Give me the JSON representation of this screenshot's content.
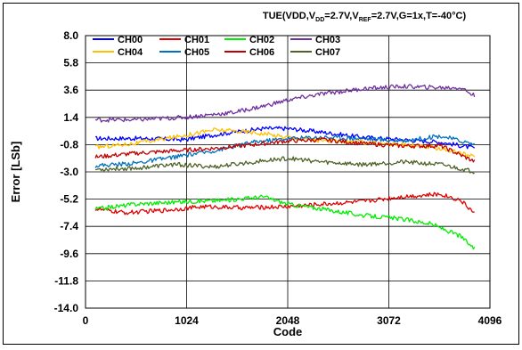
{
  "chart_data": {
    "type": "line",
    "title": {
      "prefix": "TUE(VDD,V",
      "sub1": "DD",
      "mid1": "=2.7V,V",
      "sub2": "REF",
      "suffix": "=2.7V,G=1x,T=-40°C)"
    },
    "xlabel": "Code",
    "ylabel": "Error [LSb]",
    "xlim": [
      0,
      4096
    ],
    "ylim": [
      -14.0,
      8.0
    ],
    "x_ticks": [
      0,
      1024,
      2048,
      3072,
      4096
    ],
    "x_tick_labels": [
      "0",
      "1024",
      "2048",
      "3072",
      "4096"
    ],
    "y_ticks": [
      8.0,
      5.8,
      3.6,
      1.4,
      -0.8,
      -3.0,
      -5.2,
      -7.4,
      -9.6,
      -11.8,
      -14.0
    ],
    "y_tick_labels": [
      "8.0",
      "5.8",
      "3.6",
      "1.4",
      "-0.8",
      "-3.0",
      "-5.2",
      "-7.4",
      "-9.6",
      "-11.8",
      "-14.0"
    ],
    "grid": true,
    "legend_position": "top-left, inside plot",
    "series": [
      {
        "name": "CH00",
        "color": "#0000ff",
        "x": [
          100,
          600,
          1000,
          1400,
          1800,
          2048,
          2400,
          2800,
          3200,
          3600,
          3950
        ],
        "y": [
          -0.3,
          -0.3,
          -0.4,
          0.1,
          0.5,
          0.5,
          0.2,
          -0.2,
          -0.4,
          -0.6,
          -1.1
        ]
      },
      {
        "name": "CH01",
        "color": "#e00000",
        "x": [
          100,
          400,
          800,
          1200,
          1600,
          2048,
          2400,
          2800,
          3200,
          3600,
          3800,
          3950
        ],
        "y": [
          -6.0,
          -6.3,
          -6.1,
          -5.8,
          -5.9,
          -5.8,
          -5.6,
          -5.4,
          -5.0,
          -4.8,
          -5.3,
          -6.4
        ]
      },
      {
        "name": "CH02",
        "color": "#00ee00",
        "x": [
          100,
          500,
          1000,
          1400,
          1800,
          2048,
          2400,
          2800,
          3200,
          3500,
          3800,
          3950
        ],
        "y": [
          -6.0,
          -5.6,
          -5.4,
          -5.3,
          -5.0,
          -5.6,
          -6.0,
          -6.5,
          -6.8,
          -7.2,
          -8.2,
          -9.3
        ]
      },
      {
        "name": "CH03",
        "color": "#7030a0",
        "x": [
          100,
          500,
          1000,
          1500,
          1800,
          2048,
          2400,
          2800,
          3200,
          3600,
          3800,
          3950
        ],
        "y": [
          1.2,
          1.2,
          1.4,
          1.8,
          2.3,
          2.8,
          3.3,
          3.7,
          3.9,
          3.8,
          3.8,
          3.1
        ]
      },
      {
        "name": "CH04",
        "color": "#ffc000",
        "x": [
          100,
          500,
          900,
          1300,
          1700,
          2048,
          2400,
          2800,
          3200,
          3600,
          3950
        ],
        "y": [
          -1.0,
          -0.7,
          -0.2,
          0.4,
          0.2,
          -0.2,
          -0.5,
          -0.6,
          -0.8,
          -1.1,
          -1.8
        ]
      },
      {
        "name": "CH05",
        "color": "#0070c0",
        "x": [
          100,
          500,
          900,
          1300,
          1700,
          2048,
          2400,
          2800,
          3200,
          3600,
          3950
        ],
        "y": [
          -2.5,
          -2.3,
          -1.8,
          -1.3,
          -0.6,
          -0.3,
          -0.2,
          -0.3,
          -0.5,
          -0.1,
          -0.8
        ]
      },
      {
        "name": "CH06",
        "color": "#c00000",
        "x": [
          100,
          500,
          900,
          1300,
          1700,
          2048,
          2400,
          2800,
          3200,
          3600,
          3950
        ],
        "y": [
          -1.8,
          -1.5,
          -1.3,
          -1.1,
          -0.8,
          -0.5,
          -0.4,
          -0.7,
          -0.9,
          -0.9,
          -2.2
        ]
      },
      {
        "name": "CH07",
        "color": "#4f6228",
        "x": [
          100,
          500,
          900,
          1300,
          1700,
          2048,
          2400,
          2800,
          3200,
          3600,
          3950
        ],
        "y": [
          -2.8,
          -2.7,
          -2.4,
          -2.6,
          -2.2,
          -1.9,
          -2.2,
          -2.4,
          -2.2,
          -2.4,
          -3.0
        ]
      }
    ]
  }
}
